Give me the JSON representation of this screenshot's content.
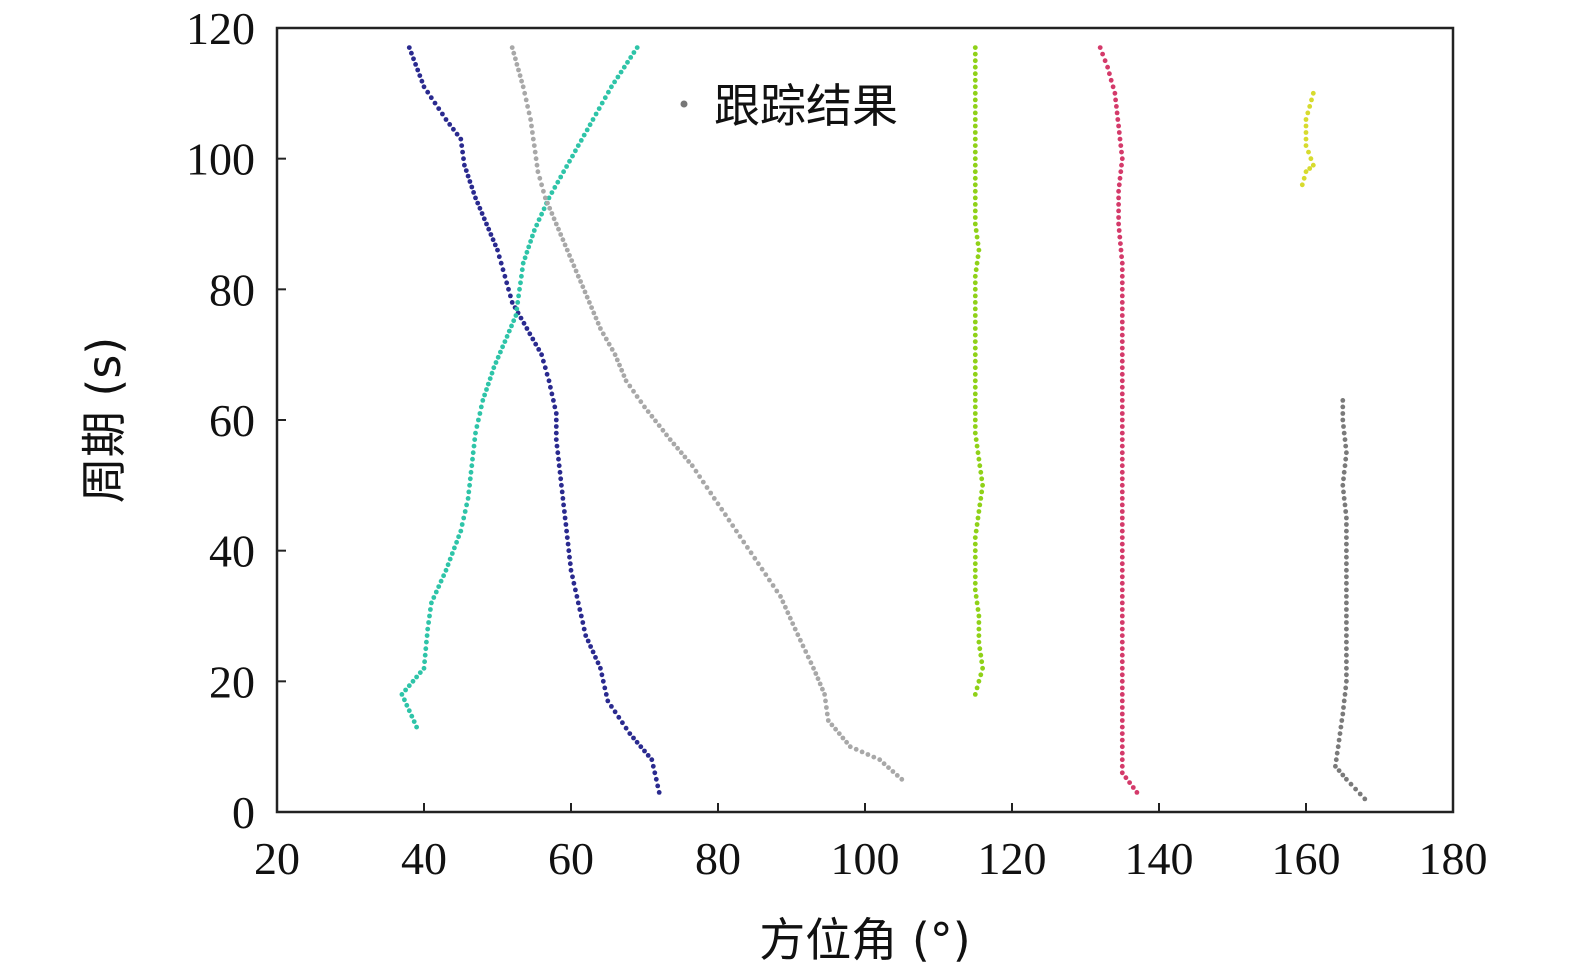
{
  "chart_data": {
    "type": "scatter",
    "xlabel": "方位角 (°)",
    "ylabel": "周期 (s)",
    "xlim": [
      20,
      180
    ],
    "ylim": [
      0,
      120
    ],
    "xticks": [
      "20",
      "40",
      "60",
      "80",
      "100",
      "120",
      "140",
      "160",
      "180"
    ],
    "yticks": [
      "0",
      "20",
      "40",
      "60",
      "80",
      "100",
      "120"
    ],
    "grid": false,
    "legend": {
      "position": "top-center",
      "label": "跟踪结果",
      "marker_color": "#777777"
    },
    "series": [
      {
        "color": "#2a2a8f",
        "points": [
          [
            72,
            3
          ],
          [
            71,
            8
          ],
          [
            68,
            12
          ],
          [
            65,
            17
          ],
          [
            64,
            22
          ],
          [
            62,
            27
          ],
          [
            61,
            32
          ],
          [
            60,
            37
          ],
          [
            59.5,
            42
          ],
          [
            59,
            47
          ],
          [
            58.5,
            52
          ],
          [
            58,
            57
          ],
          [
            58,
            61
          ],
          [
            57,
            66
          ],
          [
            56,
            70
          ],
          [
            54,
            74
          ],
          [
            52,
            78
          ],
          [
            51,
            82
          ],
          [
            50,
            86
          ],
          [
            48.5,
            90
          ],
          [
            47,
            94
          ],
          [
            45.5,
            99
          ],
          [
            45,
            103
          ],
          [
            43,
            106
          ],
          [
            40,
            111
          ],
          [
            38,
            117
          ]
        ]
      },
      {
        "color": "#2ec4a8",
        "points": [
          [
            39,
            13
          ],
          [
            37,
            18
          ],
          [
            40,
            22
          ],
          [
            40.5,
            28
          ],
          [
            41,
            32
          ],
          [
            43,
            37
          ],
          [
            45,
            43
          ],
          [
            46,
            48
          ],
          [
            46.5,
            53
          ],
          [
            47,
            58
          ],
          [
            48,
            63
          ],
          [
            49.5,
            68
          ],
          [
            51,
            72
          ],
          [
            52.5,
            76
          ],
          [
            53,
            80
          ],
          [
            53.5,
            84
          ],
          [
            55,
            89
          ],
          [
            57,
            94
          ],
          [
            59,
            98
          ],
          [
            61,
            102
          ],
          [
            63,
            106
          ],
          [
            65.5,
            111
          ],
          [
            69,
            117
          ]
        ]
      },
      {
        "color": "#a8a8a8",
        "points": [
          [
            105,
            5
          ],
          [
            102,
            8
          ],
          [
            98,
            10
          ],
          [
            95,
            14
          ],
          [
            94.5,
            18
          ],
          [
            93,
            22
          ],
          [
            90.5,
            28
          ],
          [
            88.5,
            33
          ],
          [
            85.5,
            38
          ],
          [
            82.5,
            43
          ],
          [
            79.5,
            48
          ],
          [
            76.5,
            53
          ],
          [
            73.5,
            57
          ],
          [
            70,
            62
          ],
          [
            67.5,
            66
          ],
          [
            66,
            70
          ],
          [
            64,
            74
          ],
          [
            62.5,
            78
          ],
          [
            61,
            82
          ],
          [
            59.5,
            86
          ],
          [
            58,
            90
          ],
          [
            56.5,
            94
          ],
          [
            55.5,
            98
          ],
          [
            55,
            102
          ],
          [
            54.5,
            106
          ],
          [
            53.5,
            111
          ],
          [
            52,
            117
          ]
        ]
      },
      {
        "color": "#8fd118",
        "points": [
          [
            115,
            18
          ],
          [
            116,
            22
          ],
          [
            115.5,
            26
          ],
          [
            115.5,
            30
          ],
          [
            115,
            34
          ],
          [
            115,
            38
          ],
          [
            115,
            42
          ],
          [
            115.5,
            46
          ],
          [
            116,
            50
          ],
          [
            115.5,
            54
          ],
          [
            115,
            58
          ],
          [
            115,
            62
          ],
          [
            115,
            66
          ],
          [
            115,
            70
          ],
          [
            115,
            74
          ],
          [
            115,
            78
          ],
          [
            115,
            82
          ],
          [
            115.5,
            86
          ],
          [
            115,
            90
          ],
          [
            115,
            94
          ],
          [
            115,
            98
          ],
          [
            115,
            102
          ],
          [
            115,
            106
          ],
          [
            115,
            110
          ],
          [
            115,
            114
          ],
          [
            115,
            117
          ]
        ]
      },
      {
        "color": "#d43a6a",
        "points": [
          [
            137,
            3
          ],
          [
            135,
            6
          ],
          [
            135,
            10
          ],
          [
            135,
            14
          ],
          [
            135,
            18
          ],
          [
            135,
            24
          ],
          [
            135,
            30
          ],
          [
            135,
            36
          ],
          [
            135,
            42
          ],
          [
            135,
            48
          ],
          [
            135,
            54
          ],
          [
            135,
            60
          ],
          [
            135,
            66
          ],
          [
            135,
            72
          ],
          [
            135,
            78
          ],
          [
            135,
            84
          ],
          [
            134.5,
            90
          ],
          [
            134.5,
            95
          ],
          [
            135,
            100
          ],
          [
            134.5,
            105
          ],
          [
            134,
            110
          ],
          [
            133,
            114
          ],
          [
            132,
            117
          ]
        ]
      },
      {
        "color": "#d7db2e",
        "points": [
          [
            159.5,
            96
          ],
          [
            160,
            98
          ],
          [
            161,
            99
          ],
          [
            160,
            102
          ],
          [
            160,
            106
          ],
          [
            161,
            110
          ]
        ]
      },
      {
        "color": "#7a7a7a",
        "points": [
          [
            168,
            2
          ],
          [
            165.5,
            5
          ],
          [
            164,
            7
          ],
          [
            164.5,
            11
          ],
          [
            165,
            15
          ],
          [
            165.5,
            20
          ],
          [
            165.5,
            25
          ],
          [
            165.5,
            30
          ],
          [
            165.5,
            35
          ],
          [
            165.5,
            40
          ],
          [
            165.5,
            45
          ],
          [
            165,
            50
          ],
          [
            165.5,
            55
          ],
          [
            165,
            60
          ],
          [
            165,
            63
          ]
        ]
      }
    ]
  }
}
